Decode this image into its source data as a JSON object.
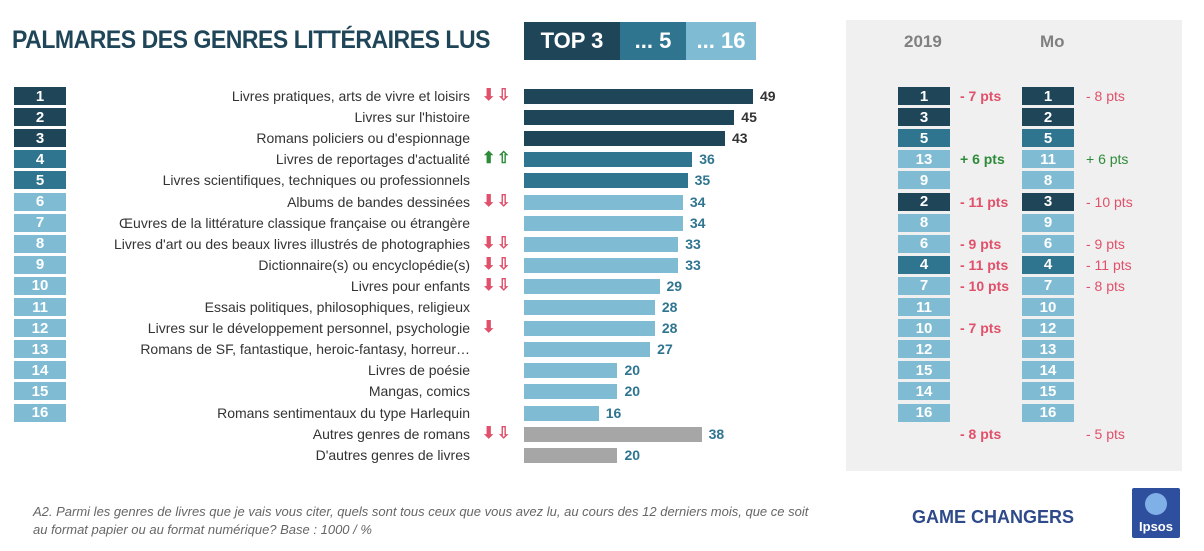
{
  "title": "PALMARES DES GENRES LITTÉRAIRES LUS",
  "tabs": [
    {
      "label": "TOP 3"
    },
    {
      "label": "... 5"
    },
    {
      "label": "... 16"
    }
  ],
  "columns": {
    "y2019": "2019",
    "mo": "Mo"
  },
  "colors": {
    "dark": "#1f4559",
    "mid": "#2f7590",
    "light": "#7fbcd4",
    "grey": "#a6a6a6",
    "red": "#e0506a",
    "green": "#2e8b3a"
  },
  "chart_data": {
    "type": "bar",
    "orientation": "horizontal",
    "categories": [
      "Livres pratiques, arts de vivre et loisirs",
      "Livres sur l'histoire",
      "Romans policiers ou d'espionnage",
      "Livres de reportages d'actualité",
      "Livres scientifiques, techniques ou professionnels",
      "Albums de bandes dessinées",
      "Œuvres de la littérature classique française ou étrangère",
      "Livres d'art ou des beaux livres illustrés de photographies",
      "Dictionnaire(s) ou encyclopédie(s)",
      "Livres pour enfants",
      "Essais politiques, philosophiques, religieux",
      "Livres sur le développement personnel, psychologie",
      "Romans de SF, fantastique, heroic-fantasy, horreur…",
      "Livres de poésie",
      "Mangas, comics",
      "Romans sentimentaux du type Harlequin",
      "Autres genres de romans",
      "D'autres genres de livres"
    ],
    "values": [
      49,
      45,
      43,
      36,
      35,
      34,
      34,
      33,
      33,
      29,
      28,
      28,
      27,
      20,
      20,
      16,
      38,
      20
    ],
    "ranks": [
      "1",
      "2",
      "3",
      "4",
      "5",
      "6",
      "7",
      "8",
      "9",
      "10",
      "11",
      "12",
      "13",
      "14",
      "15",
      "16",
      "",
      ""
    ],
    "tiers": [
      "dark",
      "dark",
      "dark",
      "mid",
      "mid",
      "light",
      "light",
      "light",
      "light",
      "light",
      "light",
      "light",
      "light",
      "light",
      "light",
      "light",
      "grey",
      "grey"
    ],
    "trend": [
      "down-both",
      "",
      "",
      "up-both",
      "",
      "down-both",
      "",
      "down-both",
      "down-both",
      "down-both",
      "",
      "down-filled",
      "",
      "",
      "",
      "",
      "down-both",
      ""
    ],
    "rank_2019": [
      "1",
      "3",
      "5",
      "13",
      "9",
      "2",
      "8",
      "6",
      "4",
      "7",
      "11",
      "10",
      "12",
      "15",
      "14",
      "16",
      "",
      ""
    ],
    "rank_2019_tiers": [
      "dark",
      "dark",
      "mid",
      "light",
      "light",
      "dark",
      "light",
      "light",
      "mid",
      "light",
      "light",
      "light",
      "light",
      "light",
      "light",
      "light",
      "",
      ""
    ],
    "delta_2019": [
      "- 7 pts",
      "",
      "",
      "+ 6 pts",
      "",
      "- 11 pts",
      "",
      "- 9 pts",
      "- 11 pts",
      "- 10 pts",
      "",
      "- 7 pts",
      "",
      "",
      "",
      "",
      "- 8 pts",
      ""
    ],
    "rank_mo": [
      "1",
      "2",
      "5",
      "11",
      "8",
      "3",
      "9",
      "6",
      "4",
      "7",
      "10",
      "12",
      "13",
      "14",
      "15",
      "16",
      "",
      ""
    ],
    "rank_mo_tiers": [
      "dark",
      "dark",
      "mid",
      "light",
      "light",
      "dark",
      "light",
      "light",
      "mid",
      "light",
      "light",
      "light",
      "light",
      "light",
      "light",
      "light",
      "",
      ""
    ],
    "delta_mo": [
      "- 8 pts",
      "",
      "",
      "+ 6 pts",
      "",
      "- 10 pts",
      "",
      "- 9 pts",
      "- 11 pts",
      "- 8 pts",
      "",
      "",
      "",
      "",
      "",
      "",
      "- 5 pts",
      ""
    ],
    "xlim": [
      0,
      49
    ]
  },
  "footnote": "A2. Parmi les genres de livres que je vais vous citer, quels sont tous ceux que vous avez lu, au cours des 12 derniers mois, que ce soit au format papier ou au format numérique? Base : 1000 / %",
  "brand": "GAME CHANGERS",
  "logo_text": "Ipsos"
}
